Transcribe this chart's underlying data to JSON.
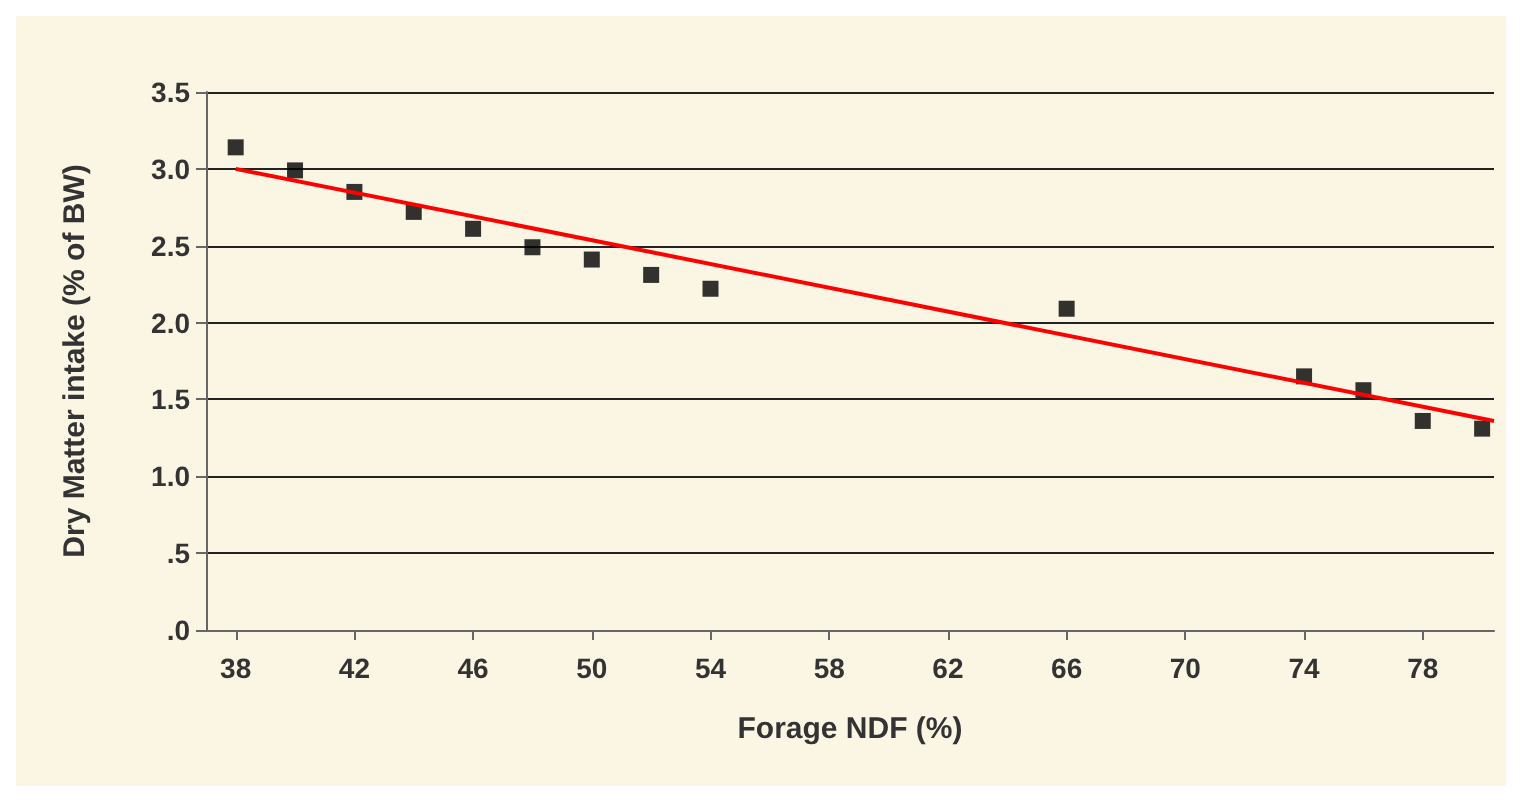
{
  "chart_data": {
    "type": "scatter",
    "xlabel": "Forage NDF (%)",
    "ylabel": "Dry Matter intake (% of BW)",
    "xlim": [
      37,
      80.4
    ],
    "xticks": [
      38,
      42,
      46,
      50,
      54,
      58,
      62,
      66,
      70,
      74,
      78
    ],
    "ylim": [
      0,
      3.5
    ],
    "yticks": [
      {
        "value": 0,
        "label": ".0"
      },
      {
        "value": 0.5,
        "label": ".5"
      },
      {
        "value": 1,
        "label": "1.0"
      },
      {
        "value": 1.5,
        "label": "1.5"
      },
      {
        "value": 2,
        "label": "2.0"
      },
      {
        "value": 2.5,
        "label": "2.5"
      },
      {
        "value": 3,
        "label": "3.0"
      },
      {
        "value": 3.5,
        "label": "3.5"
      }
    ],
    "grid": "y",
    "marker": "square",
    "series": [
      {
        "color": "#000000",
        "x": [
          38,
          40,
          42,
          44,
          46,
          48,
          50,
          52,
          54,
          66,
          74,
          76,
          78,
          80
        ],
        "values": [
          3.14,
          2.99,
          2.85,
          2.72,
          2.61,
          2.49,
          2.41,
          2.31,
          2.22,
          2.09,
          1.65,
          1.56,
          1.36,
          1.31
        ]
      },
      {
        "type": "line",
        "color": "#ff0000",
        "marker": "none",
        "x": [
          38,
          80.4
        ],
        "values": [
          3.0,
          1.36
        ]
      }
    ]
  }
}
